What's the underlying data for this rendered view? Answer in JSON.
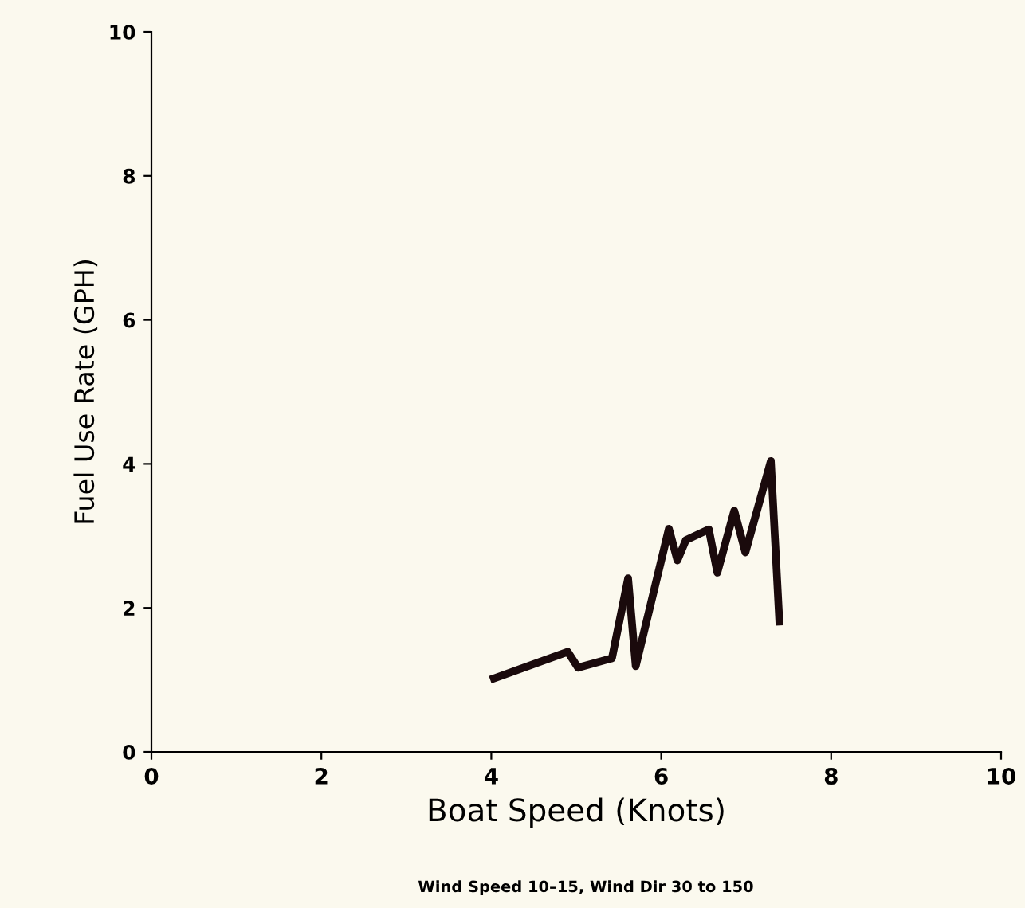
{
  "chart_data": {
    "type": "line",
    "xlabel": "Boat Speed (Knots)",
    "ylabel": "Fuel Use Rate (GPH)",
    "annotations": [
      "Wind Speed 10–15, Wind Dir 30 to 150"
    ],
    "x": [
      4.03,
      4.9,
      5.02,
      5.42,
      5.61,
      5.7,
      6.09,
      6.19,
      6.29,
      6.56,
      6.66,
      6.86,
      6.99,
      7.29,
      7.39
    ],
    "series": [
      {
        "color": "#1a0a0c",
        "values": [
          1.02,
          1.39,
          1.17,
          1.3,
          2.41,
          1.19,
          3.1,
          2.66,
          2.94,
          3.09,
          2.49,
          3.35,
          2.77,
          4.04,
          1.81
        ]
      }
    ],
    "xlim": [
      0,
      10
    ],
    "xticks": [
      0,
      2,
      4,
      6,
      8,
      10
    ],
    "ylim": [
      0,
      10
    ],
    "yticks": [
      0,
      2,
      4,
      6,
      8,
      10
    ],
    "grid": false,
    "legend": false,
    "marker": "none",
    "line_style": "solid"
  }
}
